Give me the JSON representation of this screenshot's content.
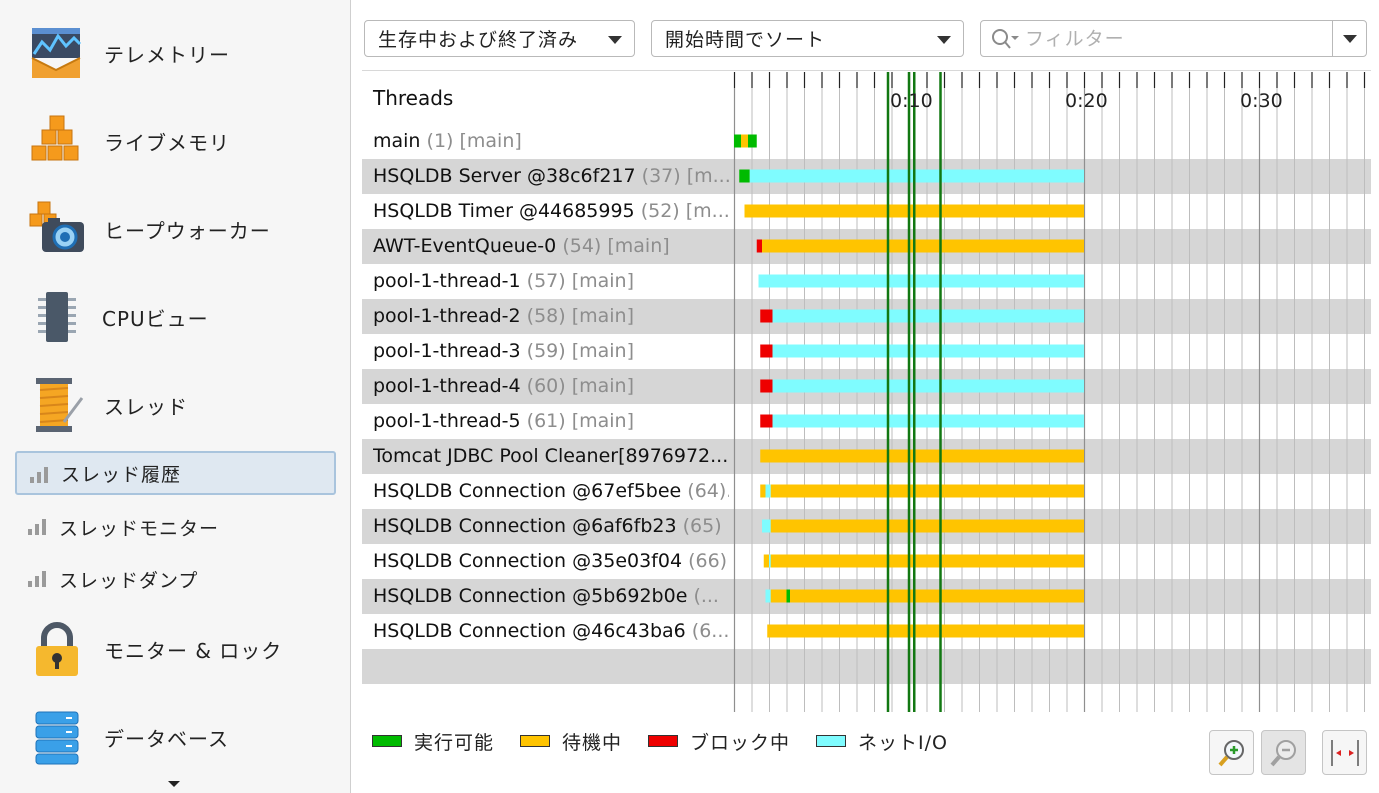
{
  "sidebar": {
    "items": [
      {
        "label": "テレメトリー",
        "icon": "telemetry-icon"
      },
      {
        "label": "ライブメモリ",
        "icon": "live-memory-icon"
      },
      {
        "label": "ヒープウォーカー",
        "icon": "heap-walker-icon"
      },
      {
        "label": "CPUビュー",
        "icon": "cpu-view-icon"
      },
      {
        "label": "スレッド",
        "icon": "threads-icon"
      },
      {
        "label": "スレッド履歴",
        "icon": "bar-chart-icon",
        "selected": true
      },
      {
        "label": "スレッドモニター",
        "icon": "bar-chart-icon"
      },
      {
        "label": "スレッドダンプ",
        "icon": "bar-chart-icon"
      },
      {
        "label": "モニター & ロック",
        "icon": "lock-icon"
      },
      {
        "label": "データベース",
        "icon": "database-icon"
      }
    ]
  },
  "toolbar": {
    "thread_filter": "生存中および終了済み",
    "sort": "開始時間でソート",
    "filter_placeholder": "フィルター"
  },
  "threads_header": "Threads",
  "colors": {
    "runnable": "#00bb00",
    "waiting": "#ffc400",
    "blocked": "#ee0000",
    "net_io": "#7ffcff",
    "marker": "#127812"
  },
  "timeline": {
    "ticks": [
      "0:10",
      "0:20",
      "0:30"
    ],
    "unit": "seconds",
    "end": 20,
    "markers": [
      8.8,
      10.0,
      10.3,
      11.8
    ]
  },
  "threads": [
    {
      "name": "main",
      "meta": "(1) [main]",
      "segments": [
        [
          0.0,
          0.4,
          "runnable"
        ],
        [
          0.4,
          0.8,
          "waiting"
        ],
        [
          0.8,
          1.3,
          "runnable"
        ]
      ]
    },
    {
      "name": "HSQLDB Server @38c6f217",
      "meta": "(37) [m...",
      "segments": [
        [
          0.3,
          0.9,
          "runnable"
        ],
        [
          0.9,
          20.0,
          "net_io"
        ]
      ]
    },
    {
      "name": "HSQLDB Timer @44685995",
      "meta": "(52) [m...",
      "segments": [
        [
          0.6,
          20.0,
          "waiting"
        ]
      ]
    },
    {
      "name": "AWT-EventQueue-0",
      "meta": "(54) [main]",
      "segments": [
        [
          1.3,
          1.6,
          "blocked"
        ],
        [
          1.6,
          20.0,
          "waiting"
        ]
      ]
    },
    {
      "name": "pool-1-thread-1",
      "meta": "(57) [main]",
      "segments": [
        [
          1.4,
          20.0,
          "net_io"
        ]
      ]
    },
    {
      "name": "pool-1-thread-2",
      "meta": "(58) [main]",
      "segments": [
        [
          1.5,
          2.2,
          "blocked"
        ],
        [
          2.2,
          20.0,
          "net_io"
        ]
      ]
    },
    {
      "name": "pool-1-thread-3",
      "meta": "(59) [main]",
      "segments": [
        [
          1.5,
          2.2,
          "blocked"
        ],
        [
          2.2,
          20.0,
          "net_io"
        ]
      ]
    },
    {
      "name": "pool-1-thread-4",
      "meta": "(60) [main]",
      "segments": [
        [
          1.5,
          2.2,
          "blocked"
        ],
        [
          2.2,
          20.0,
          "net_io"
        ]
      ]
    },
    {
      "name": "pool-1-thread-5",
      "meta": "(61) [main]",
      "segments": [
        [
          1.5,
          2.2,
          "blocked"
        ],
        [
          2.2,
          20.0,
          "net_io"
        ]
      ]
    },
    {
      "name": "Tomcat JDBC Pool Cleaner[8976972...",
      "meta": "",
      "segments": [
        [
          1.5,
          20.0,
          "waiting"
        ]
      ]
    },
    {
      "name": "HSQLDB Connection @67ef5bee",
      "meta": "(64)...",
      "segments": [
        [
          1.5,
          1.8,
          "waiting"
        ],
        [
          1.8,
          2.1,
          "net_io"
        ],
        [
          2.1,
          20.0,
          "waiting"
        ]
      ]
    },
    {
      "name": "HSQLDB Connection @6af6fb23",
      "meta": "(65) ...",
      "segments": [
        [
          1.6,
          2.1,
          "net_io"
        ],
        [
          2.1,
          20.0,
          "waiting"
        ]
      ]
    },
    {
      "name": "HSQLDB Connection @35e03f04",
      "meta": "(66)...",
      "segments": [
        [
          1.7,
          2.0,
          "waiting"
        ],
        [
          2.0,
          2.1,
          "net_io"
        ],
        [
          2.1,
          20.0,
          "waiting"
        ]
      ]
    },
    {
      "name": "HSQLDB Connection @5b692b0e",
      "meta": "(...",
      "segments": [
        [
          1.8,
          2.1,
          "net_io"
        ],
        [
          2.1,
          3.0,
          "waiting"
        ],
        [
          3.0,
          3.2,
          "runnable"
        ],
        [
          3.2,
          20.0,
          "waiting"
        ]
      ]
    },
    {
      "name": "HSQLDB Connection @46c43ba6",
      "meta": "(6...",
      "segments": [
        [
          1.9,
          20.0,
          "waiting"
        ]
      ]
    }
  ],
  "legend": [
    {
      "label": "実行可能",
      "key": "runnable"
    },
    {
      "label": "待機中",
      "key": "waiting"
    },
    {
      "label": "ブロック中",
      "key": "blocked"
    },
    {
      "label": "ネットI/O",
      "key": "net_io"
    }
  ]
}
